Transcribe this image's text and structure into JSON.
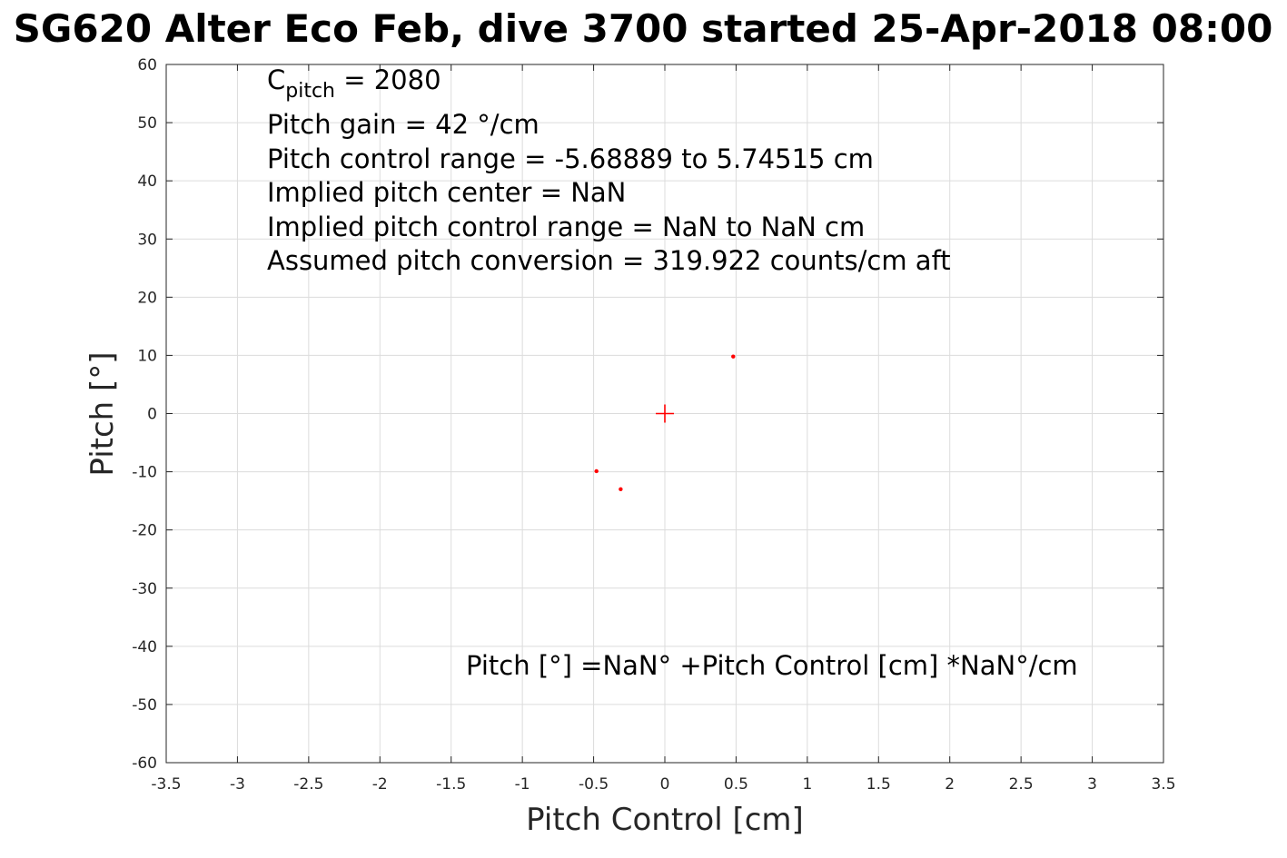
{
  "chart_data": {
    "type": "scatter",
    "title": "SG620 Alter Eco Feb, dive 3700 started 25-Apr-2018 08:00",
    "xlabel": "Pitch Control [cm]",
    "ylabel": "Pitch [°]",
    "xlim": [
      -3.5,
      3.5
    ],
    "ylim": [
      -60,
      60
    ],
    "xticks": [
      -3.5,
      -3,
      -2.5,
      -2,
      -1.5,
      -1,
      -0.5,
      0,
      0.5,
      1,
      1.5,
      2,
      2.5,
      3,
      3.5
    ],
    "xtick_labels": [
      "-3.5",
      "-3",
      "-2.5",
      "-2",
      "-1.5",
      "-1",
      "-0.5",
      "0",
      "0.5",
      "1",
      "1.5",
      "2",
      "2.5",
      "3",
      "3.5"
    ],
    "yticks": [
      60,
      50,
      40,
      30,
      20,
      10,
      0,
      -10,
      -20,
      -30,
      -40,
      -50,
      -60
    ],
    "ytick_labels": [
      "60",
      "50",
      "40",
      "30",
      "20",
      "10",
      "0",
      "-10",
      "-20",
      "-30",
      "-40",
      "-50",
      "-60"
    ],
    "grid": true,
    "marker_color": "#ff0000",
    "points": [
      {
        "x": 0.48,
        "y": 9.8
      },
      {
        "x": -0.48,
        "y": -9.9
      },
      {
        "x": -0.31,
        "y": -13.0
      }
    ],
    "center_marker": {
      "x": 0,
      "y": 0,
      "shape": "plus"
    },
    "annotations": {
      "c_pitch_symbol": "C",
      "c_pitch_subscript": "pitch",
      "c_pitch_value": " = 2080",
      "lines": [
        "Pitch gain = 42 °/cm",
        "Pitch control range = -5.68889 to 5.74515 cm",
        "Implied pitch center = NaN",
        "Implied pitch control range = NaN to NaN cm",
        "Assumed pitch conversion = 319.922 counts/cm aft"
      ],
      "fit_equation": "Pitch [°] =NaN° +Pitch Control [cm] *NaN°/cm"
    }
  }
}
